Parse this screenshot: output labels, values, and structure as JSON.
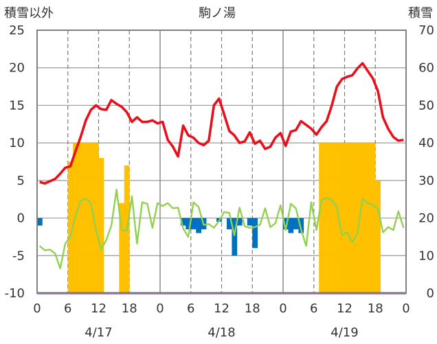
{
  "chart_data": {
    "type": "line",
    "title": "駒ノ湯",
    "left_axis_label": "積雪以外",
    "right_axis_label": "積雪",
    "left_ylim": [
      -10,
      25
    ],
    "left_yticks": [
      "25",
      "20",
      "15",
      "10",
      "5",
      "0",
      "-5",
      "-10"
    ],
    "right_ylim": [
      0,
      70
    ],
    "right_yticks": [
      "70",
      "60",
      "50",
      "40",
      "30",
      "20",
      "10",
      "0"
    ],
    "x_tick_labels": [
      "0",
      "6",
      "12",
      "18",
      "0",
      "6",
      "12",
      "18",
      "0",
      "6",
      "12",
      "18",
      "0"
    ],
    "date_labels": [
      "4/17",
      "4/18",
      "4/19"
    ],
    "grid": true,
    "colors": {
      "red_line": "#e8101a",
      "green_line": "#92d050",
      "orange_bars": "#ffc000",
      "blue_bars": "#0070c0",
      "purple_line": "#7030a0",
      "frame": "#808080"
    },
    "series": [
      {
        "style": "line",
        "color": "#e8101a",
        "axis": "left",
        "values": [
          4.8,
          4.6,
          4.9,
          5.2,
          5.9,
          6.7,
          6.9,
          8.9,
          10.8,
          13.0,
          14.4,
          15.0,
          14.5,
          14.4,
          15.7,
          15.2,
          14.8,
          14.1,
          12.8,
          13.4,
          12.8,
          12.8,
          13.0,
          12.6,
          12.8,
          10.4,
          9.5,
          8.2,
          12.3,
          11.0,
          10.7,
          10.0,
          9.7,
          10.3,
          15.0,
          15.9,
          13.8,
          11.6,
          11.0,
          10.0,
          10.2,
          11.4,
          9.9,
          10.3,
          9.2,
          9.5,
          10.7,
          11.3,
          9.6,
          11.5,
          11.7,
          12.9,
          12.4,
          11.9,
          11.1,
          12.1,
          12.9,
          15.0,
          17.5,
          18.5,
          18.8,
          19.0,
          19.9,
          20.6,
          19.6,
          18.6,
          16.9,
          13.4,
          11.9,
          10.8,
          10.3,
          10.4
        ]
      },
      {
        "style": "line",
        "color": "#92d050",
        "axis": "left",
        "values": [
          -3.7,
          -4.3,
          -4.2,
          -4.7,
          -6.7,
          -3.4,
          -2.5,
          0.3,
          2.3,
          2.6,
          2.0,
          -1.6,
          -4.2,
          -2.9,
          -1.0,
          3.8,
          -1.6,
          -1.7,
          2.9,
          -3.4,
          2.1,
          1.9,
          -1.3,
          2.0,
          1.6,
          2.0,
          1.3,
          1.4,
          -1.4,
          -2.5,
          2.1,
          1.5,
          -0.9,
          -0.8,
          -1.3,
          -0.4,
          0.8,
          0.7,
          -2.3,
          1.4,
          -1.1,
          -1.3,
          -1.2,
          -0.9,
          1.3,
          -1.2,
          -0.7,
          1.7,
          -1.6,
          1.9,
          1.3,
          -1.5,
          -3.7,
          2.1,
          -1.6,
          2.4,
          2.7,
          2.4,
          1.4,
          -2.3,
          -1.9,
          -3.2,
          -2.1,
          2.6,
          2.0,
          1.8,
          1.2,
          -1.9,
          -1.2,
          -1.6,
          0.9,
          -1.3
        ]
      },
      {
        "style": "bar",
        "color": "#ffc000",
        "axis": "right",
        "values": [
          0,
          0,
          0,
          0,
          0,
          0,
          35,
          40,
          40,
          40,
          40,
          40,
          36,
          0,
          0,
          0,
          24,
          34,
          0,
          0,
          0,
          0,
          0,
          0,
          0,
          0,
          0,
          0,
          0,
          0,
          0,
          0,
          0,
          0,
          0,
          0,
          0,
          0,
          0,
          0,
          0,
          0,
          0,
          0,
          0,
          0,
          0,
          0,
          0,
          0,
          0,
          0,
          0,
          0,
          0,
          40,
          40,
          40,
          40,
          40,
          40,
          40,
          40,
          40,
          40,
          40,
          30,
          0,
          0,
          0,
          0,
          0
        ]
      },
      {
        "style": "bar",
        "color": "#0070c0",
        "axis": "left",
        "values": [
          -1.0,
          0,
          0,
          0,
          0,
          0,
          0,
          0,
          0,
          0,
          0,
          0,
          0,
          0,
          0,
          0,
          0,
          0,
          0,
          0,
          0,
          0,
          0,
          0,
          0,
          0,
          0,
          0,
          -1.0,
          -1.5,
          -1.5,
          -2.0,
          -1.5,
          0,
          0,
          -0.5,
          0,
          -1.5,
          -5.0,
          -1.0,
          0,
          -1.0,
          -4.0,
          0,
          0,
          0,
          0,
          0,
          -1.5,
          -2.0,
          -1.5,
          -2.0,
          0,
          0,
          0,
          0,
          0,
          0,
          0,
          0,
          0,
          0,
          0,
          0,
          0,
          0,
          0,
          0,
          0,
          0,
          0,
          0
        ]
      },
      {
        "style": "line",
        "color": "#7030a0",
        "axis": "left",
        "values": [
          -10,
          -10
        ]
      }
    ]
  }
}
